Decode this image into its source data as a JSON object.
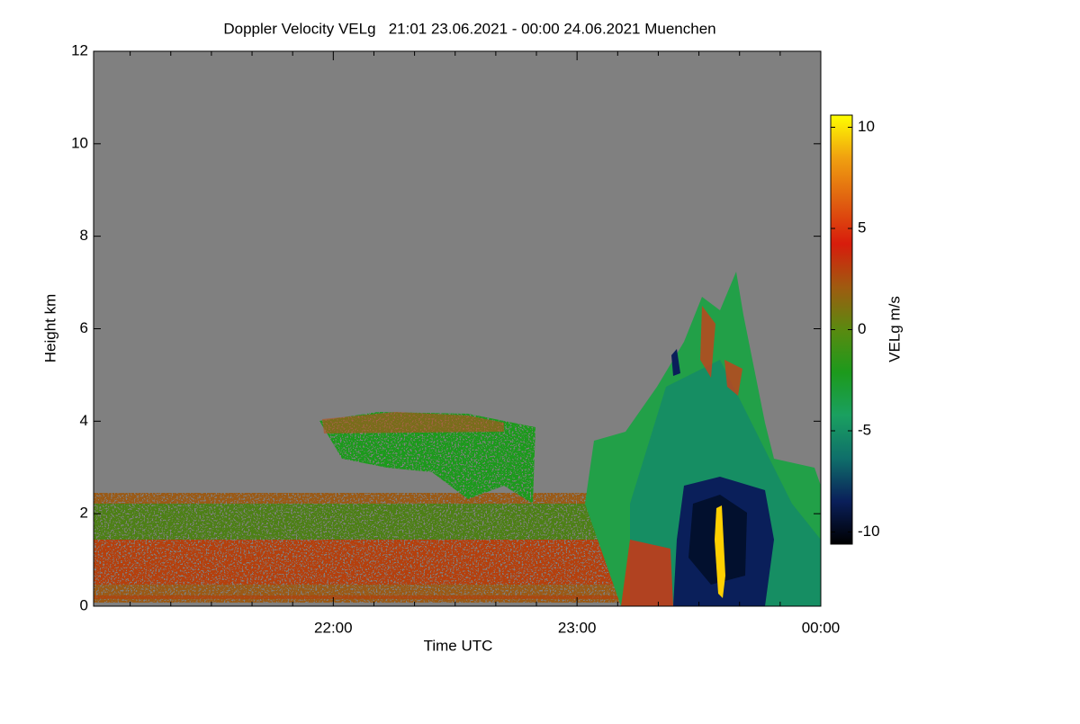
{
  "chart_data": {
    "type": "heatmap",
    "title": "Doppler Velocity VELg   21:01 23.06.2021 - 00:00 24.06.2021 Muenchen",
    "xlabel": "Time UTC",
    "ylabel": "Height km",
    "xlim": [
      1261,
      1440
    ],
    "xticks": [
      {
        "value": 1320,
        "label": "22:00"
      },
      {
        "value": 1380,
        "label": "23:00"
      },
      {
        "value": 1440,
        "label": "00:00"
      }
    ],
    "xminorticks": [
      1270,
      1280,
      1290,
      1300,
      1310,
      1330,
      1340,
      1350,
      1360,
      1370,
      1390,
      1400,
      1410,
      1420,
      1430
    ],
    "ylim": [
      0,
      12
    ],
    "yticks": [
      0,
      2,
      4,
      6,
      8,
      10,
      12
    ],
    "background": "#808080",
    "colorbar": {
      "label": "VELg m/s",
      "lim": [
        -10.6,
        10.6
      ],
      "ticks": [
        10,
        5,
        0,
        -5,
        -10
      ],
      "colors": [
        "#000000",
        "#0a1f5a",
        "#0f6f6a",
        "#1aa060",
        "#1c9a1c",
        "#5a8a10",
        "#a05a10",
        "#d81c0c",
        "#e06010",
        "#f0a010",
        "#ffff00"
      ]
    }
  }
}
